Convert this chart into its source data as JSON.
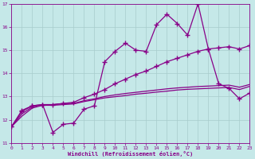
{
  "xlabel": "Windchill (Refroidissement éolien,°C)",
  "x": [
    0,
    1,
    2,
    3,
    4,
    5,
    6,
    7,
    8,
    9,
    10,
    11,
    12,
    13,
    14,
    15,
    16,
    17,
    18,
    19,
    20,
    21,
    22,
    23
  ],
  "jagged": [
    11.7,
    12.4,
    12.6,
    12.65,
    11.45,
    11.8,
    11.85,
    12.45,
    12.6,
    14.5,
    14.95,
    15.3,
    15.0,
    14.95,
    16.1,
    16.55,
    16.15,
    15.65,
    17.0,
    15.05,
    13.55,
    13.35,
    12.9,
    13.15
  ],
  "upper": [
    11.7,
    12.35,
    12.6,
    12.65,
    12.65,
    12.7,
    12.75,
    12.95,
    13.1,
    13.3,
    13.55,
    13.75,
    13.95,
    14.1,
    14.3,
    14.5,
    14.65,
    14.8,
    14.95,
    15.05,
    15.1,
    15.15,
    15.05,
    15.2
  ],
  "mid": [
    11.7,
    12.25,
    12.55,
    12.65,
    12.65,
    12.7,
    12.7,
    12.82,
    12.9,
    13.0,
    13.07,
    13.13,
    13.18,
    13.23,
    13.28,
    13.33,
    13.37,
    13.4,
    13.43,
    13.45,
    13.47,
    13.49,
    13.4,
    13.52
  ],
  "low": [
    11.7,
    12.15,
    12.5,
    12.62,
    12.62,
    12.65,
    12.68,
    12.78,
    12.86,
    12.94,
    12.99,
    13.04,
    13.1,
    13.14,
    13.19,
    13.23,
    13.28,
    13.31,
    13.33,
    13.35,
    13.37,
    13.39,
    13.3,
    13.44
  ],
  "bg_color": "#c5e8e8",
  "grid_color": "#a8cccc",
  "line_color": "#880088",
  "ylim": [
    11,
    17
  ],
  "xlim": [
    0,
    23
  ],
  "yticks": [
    11,
    12,
    13,
    14,
    15,
    16,
    17
  ],
  "xticks": [
    0,
    1,
    2,
    3,
    4,
    5,
    6,
    7,
    8,
    9,
    10,
    11,
    12,
    13,
    14,
    15,
    16,
    17,
    18,
    19,
    20,
    21,
    22,
    23
  ]
}
